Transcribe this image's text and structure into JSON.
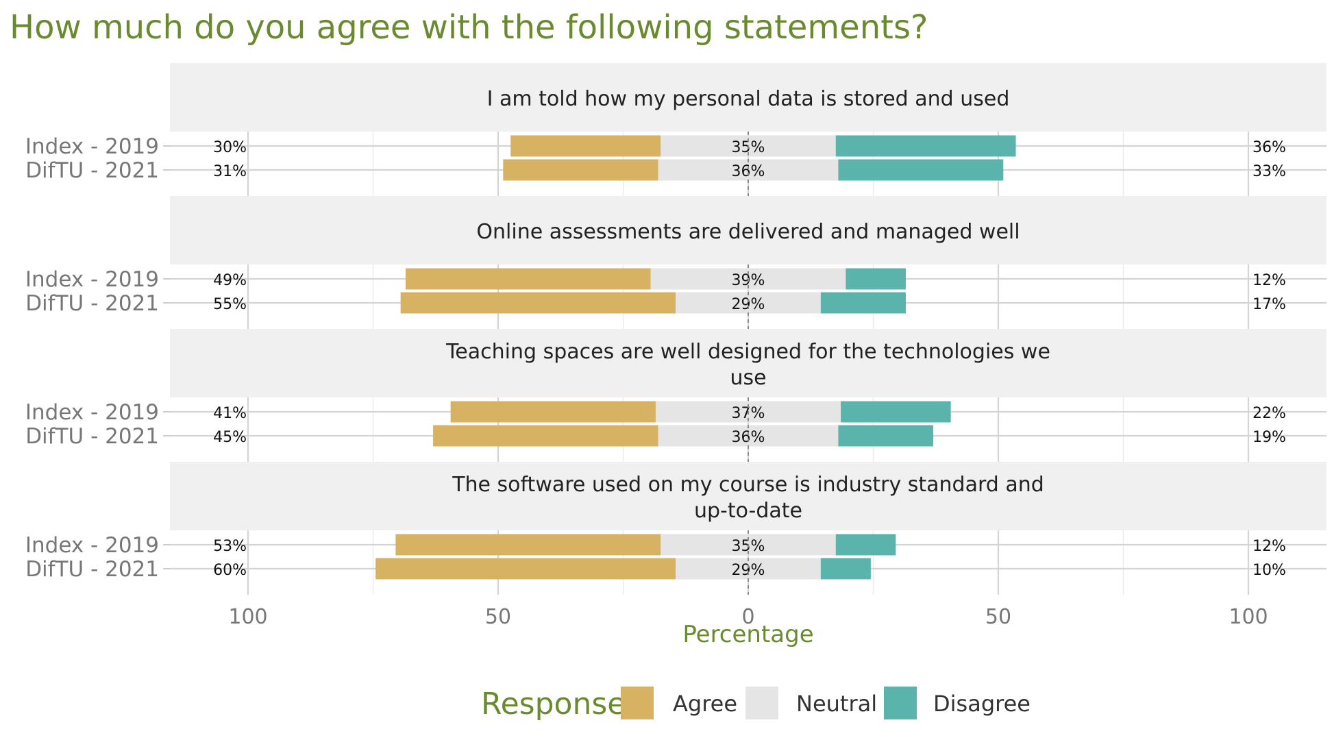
{
  "chart_data": {
    "type": "bar",
    "subtype": "diverging-stacked-faceted",
    "title": "How much do you agree with the following statements?",
    "xlabel": "Percentage",
    "xlim": [
      -100,
      100
    ],
    "x_ticks": [
      100,
      50,
      0,
      50,
      100
    ],
    "row_labels": [
      "Index - 2019",
      "DifTU - 2021"
    ],
    "legend": {
      "title": "Response",
      "placement": "bottom",
      "items": [
        "Agree",
        "Neutral",
        "Disagree"
      ]
    },
    "colors": {
      "Agree": "#d8b263",
      "Neutral": "#e5e5e5",
      "Disagree": "#5ab4ac",
      "strip": "#f0f0f0",
      "grid": "#d9d9d9",
      "title": "#6a8a2f"
    },
    "grid": true,
    "facets": [
      {
        "statement": "I am told how my personal data is stored and used",
        "rows": [
          {
            "label": "Index - 2019",
            "agree": 30,
            "neutral": 35,
            "disagree": 36,
            "agree_label": "30%",
            "neutral_label": "35%",
            "disagree_label": "36%"
          },
          {
            "label": "DifTU - 2021",
            "agree": 31,
            "neutral": 36,
            "disagree": 33,
            "agree_label": "31%",
            "neutral_label": "36%",
            "disagree_label": "33%"
          }
        ]
      },
      {
        "statement": "Online assessments are delivered and managed well",
        "rows": [
          {
            "label": "Index - 2019",
            "agree": 49,
            "neutral": 39,
            "disagree": 12,
            "agree_label": "49%",
            "neutral_label": "39%",
            "disagree_label": "12%"
          },
          {
            "label": "DifTU - 2021",
            "agree": 55,
            "neutral": 29,
            "disagree": 17,
            "agree_label": "55%",
            "neutral_label": "29%",
            "disagree_label": "17%"
          }
        ]
      },
      {
        "statement": "Teaching spaces are well designed for the technologies we use",
        "statement_lines": [
          "Teaching spaces are well designed for the technologies we",
          "use"
        ],
        "rows": [
          {
            "label": "Index - 2019",
            "agree": 41,
            "neutral": 37,
            "disagree": 22,
            "agree_label": "41%",
            "neutral_label": "37%",
            "disagree_label": "22%"
          },
          {
            "label": "DifTU - 2021",
            "agree": 45,
            "neutral": 36,
            "disagree": 19,
            "agree_label": "45%",
            "neutral_label": "36%",
            "disagree_label": "19%"
          }
        ]
      },
      {
        "statement": "The software used on my course is industry standard and up-to-date",
        "statement_lines": [
          "The software used on my course is industry standard and",
          "up-to-date"
        ],
        "rows": [
          {
            "label": "Index - 2019",
            "agree": 53,
            "neutral": 35,
            "disagree": 12,
            "agree_label": "53%",
            "neutral_label": "35%",
            "disagree_label": "12%"
          },
          {
            "label": "DifTU - 2021",
            "agree": 60,
            "neutral": 29,
            "disagree": 10,
            "agree_label": "60%",
            "neutral_label": "29%",
            "disagree_label": "10%"
          }
        ]
      }
    ]
  }
}
